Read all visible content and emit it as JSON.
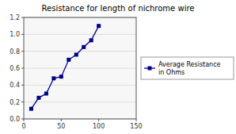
{
  "chart_data": {
    "type": "line",
    "title": "Resistance for length of nichrome wire",
    "x": [
      10,
      20,
      30,
      40,
      50,
      60,
      70,
      80,
      90,
      100
    ],
    "series": [
      {
        "name": "Average Resistance\nin Ohms",
        "color": "#00008B",
        "marker": "square",
        "values": [
          0.12,
          0.25,
          0.3,
          0.48,
          0.5,
          0.7,
          0.76,
          0.85,
          0.93,
          1.1
        ]
      }
    ],
    "xlim": [
      0,
      150
    ],
    "ylim": [
      0,
      1.2
    ],
    "xticks": [
      0,
      50,
      100,
      150
    ],
    "yticks": [
      {
        "value": 0,
        "label": "0.0"
      },
      0.2,
      0.4,
      0.6,
      0.8,
      {
        "value": 1.0,
        "label": "1.0"
      },
      1.2
    ],
    "grid": true,
    "legend": "right"
  }
}
